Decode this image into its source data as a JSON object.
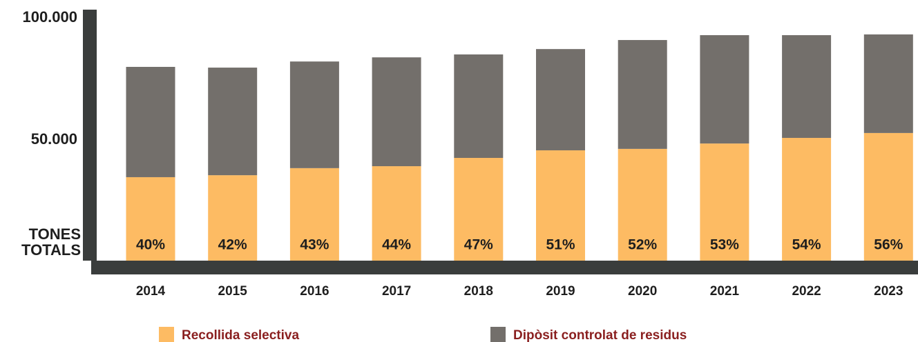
{
  "chart_data": {
    "type": "stacked_bar",
    "y_label": [
      "TONES",
      "TOTALS"
    ],
    "categories": [
      "2014",
      "2015",
      "2016",
      "2017",
      "2018",
      "2019",
      "2020",
      "2021",
      "2022",
      "2023"
    ],
    "series": [
      {
        "name": "Recollida selectiva",
        "color": "#fdbb63",
        "values": [
          34200,
          35000,
          37900,
          38700,
          42100,
          45200,
          45800,
          48000,
          50300,
          52300
        ],
        "share_labels": [
          "40%",
          "42%",
          "43%",
          "44%",
          "47%",
          "51%",
          "52%",
          "53%",
          "54%",
          "56%"
        ]
      },
      {
        "name": "Dipòsit controlat de residus",
        "color": "#736f6b",
        "values": [
          45200,
          44100,
          43700,
          44600,
          42400,
          41500,
          44600,
          44400,
          42100,
          40400
        ]
      }
    ],
    "ylim": [
      0,
      102000
    ],
    "yticks": [
      {
        "value": 50000,
        "label": "50.000"
      },
      {
        "value": 100000,
        "label": "100.000"
      }
    ],
    "axis_color": "#3a3d3c"
  }
}
